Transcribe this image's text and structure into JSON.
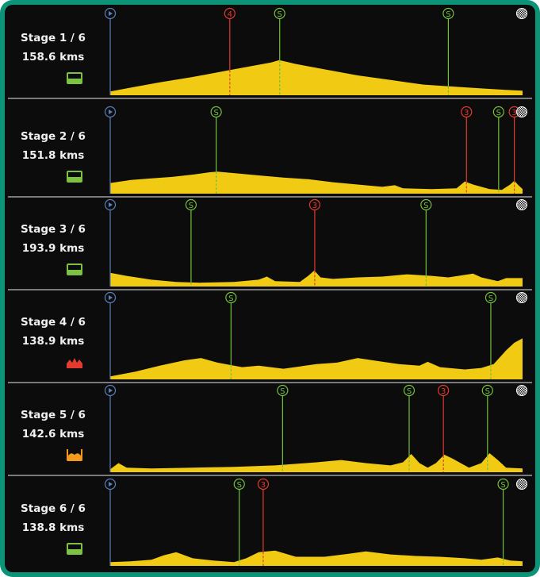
{
  "colors": {
    "frame": "#0d9478",
    "background": "#0c0c0c",
    "profile": "#f1cb13",
    "start_marker": "#5b7fb8",
    "sprint": "#72c13d",
    "climb": "#e33a2e",
    "separator": "#7a7a7a"
  },
  "stages": [
    {
      "name": "Stage 1 / 6",
      "distance": "158.6 kms",
      "difficulty": "flat",
      "difficulty_color": "#7dc242",
      "markers": [
        {
          "type": "start",
          "label": "",
          "pos": 0
        },
        {
          "type": "climb",
          "label": "4",
          "pos": 0.29
        },
        {
          "type": "sprint",
          "label": "S",
          "pos": 0.411
        },
        {
          "type": "sprint",
          "label": "S",
          "pos": 0.82
        },
        {
          "type": "finish",
          "label": "",
          "pos": 1
        }
      ],
      "profile": [
        [
          0,
          0.05
        ],
        [
          0.05,
          0.1
        ],
        [
          0.12,
          0.17
        ],
        [
          0.2,
          0.24
        ],
        [
          0.28,
          0.32
        ],
        [
          0.34,
          0.38
        ],
        [
          0.39,
          0.43
        ],
        [
          0.41,
          0.46
        ],
        [
          0.45,
          0.41
        ],
        [
          0.52,
          0.34
        ],
        [
          0.6,
          0.26
        ],
        [
          0.68,
          0.2
        ],
        [
          0.76,
          0.14
        ],
        [
          0.84,
          0.11
        ],
        [
          0.9,
          0.09
        ],
        [
          0.96,
          0.07
        ],
        [
          1,
          0.06
        ]
      ]
    },
    {
      "name": "Stage 2 / 6",
      "distance": "151.8 kms",
      "difficulty": "flat",
      "difficulty_color": "#7dc242",
      "markers": [
        {
          "type": "start",
          "label": "",
          "pos": 0
        },
        {
          "type": "sprint",
          "label": "S",
          "pos": 0.257
        },
        {
          "type": "climb",
          "label": "3",
          "pos": 0.864
        },
        {
          "type": "sprint",
          "label": "S",
          "pos": 0.942
        },
        {
          "type": "climb",
          "label": "3",
          "pos": 0.98
        },
        {
          "type": "finish",
          "label": "",
          "pos": 1
        }
      ],
      "profile": [
        [
          0,
          0.14
        ],
        [
          0.05,
          0.18
        ],
        [
          0.1,
          0.2
        ],
        [
          0.15,
          0.22
        ],
        [
          0.2,
          0.25
        ],
        [
          0.24,
          0.28
        ],
        [
          0.26,
          0.29
        ],
        [
          0.3,
          0.27
        ],
        [
          0.36,
          0.24
        ],
        [
          0.42,
          0.21
        ],
        [
          0.48,
          0.19
        ],
        [
          0.54,
          0.15
        ],
        [
          0.6,
          0.12
        ],
        [
          0.66,
          0.09
        ],
        [
          0.69,
          0.11
        ],
        [
          0.71,
          0.07
        ],
        [
          0.78,
          0.06
        ],
        [
          0.84,
          0.07
        ],
        [
          0.86,
          0.16
        ],
        [
          0.88,
          0.12
        ],
        [
          0.92,
          0.06
        ],
        [
          0.95,
          0.05
        ],
        [
          0.97,
          0.12
        ],
        [
          0.98,
          0.17
        ],
        [
          0.99,
          0.11
        ],
        [
          1,
          0.06
        ]
      ]
    },
    {
      "name": "Stage 3 / 6",
      "distance": "193.9 kms",
      "difficulty": "flat",
      "difficulty_color": "#7dc242",
      "markers": [
        {
          "type": "start",
          "label": "",
          "pos": 0
        },
        {
          "type": "sprint",
          "label": "S",
          "pos": 0.196
        },
        {
          "type": "climb",
          "label": "3",
          "pos": 0.496
        },
        {
          "type": "sprint",
          "label": "S",
          "pos": 0.766
        },
        {
          "type": "finish",
          "label": "",
          "pos": 1
        }
      ],
      "profile": [
        [
          0,
          0.18
        ],
        [
          0.04,
          0.14
        ],
        [
          0.1,
          0.09
        ],
        [
          0.16,
          0.06
        ],
        [
          0.22,
          0.05
        ],
        [
          0.3,
          0.06
        ],
        [
          0.36,
          0.09
        ],
        [
          0.38,
          0.13
        ],
        [
          0.4,
          0.07
        ],
        [
          0.46,
          0.06
        ],
        [
          0.48,
          0.14
        ],
        [
          0.495,
          0.21
        ],
        [
          0.51,
          0.12
        ],
        [
          0.54,
          0.1
        ],
        [
          0.6,
          0.12
        ],
        [
          0.66,
          0.13
        ],
        [
          0.72,
          0.16
        ],
        [
          0.78,
          0.14
        ],
        [
          0.82,
          0.12
        ],
        [
          0.88,
          0.17
        ],
        [
          0.9,
          0.12
        ],
        [
          0.94,
          0.07
        ],
        [
          0.96,
          0.11
        ],
        [
          1,
          0.11
        ]
      ]
    },
    {
      "name": "Stage 4 / 6",
      "distance": "138.9 kms",
      "difficulty": "mountain",
      "difficulty_color": "#e23b2f",
      "markers": [
        {
          "type": "start",
          "label": "",
          "pos": 0
        },
        {
          "type": "sprint",
          "label": "S",
          "pos": 0.293
        },
        {
          "type": "sprint",
          "label": "S",
          "pos": 0.923
        },
        {
          "type": "finish",
          "label": "",
          "pos": 1
        }
      ],
      "profile": [
        [
          0,
          0.04
        ],
        [
          0.06,
          0.1
        ],
        [
          0.12,
          0.18
        ],
        [
          0.18,
          0.25
        ],
        [
          0.22,
          0.28
        ],
        [
          0.26,
          0.22
        ],
        [
          0.32,
          0.16
        ],
        [
          0.36,
          0.18
        ],
        [
          0.42,
          0.14
        ],
        [
          0.46,
          0.17
        ],
        [
          0.5,
          0.2
        ],
        [
          0.55,
          0.22
        ],
        [
          0.6,
          0.28
        ],
        [
          0.65,
          0.24
        ],
        [
          0.7,
          0.2
        ],
        [
          0.75,
          0.18
        ],
        [
          0.77,
          0.23
        ],
        [
          0.8,
          0.16
        ],
        [
          0.86,
          0.13
        ],
        [
          0.9,
          0.15
        ],
        [
          0.93,
          0.2
        ],
        [
          0.96,
          0.38
        ],
        [
          0.98,
          0.48
        ],
        [
          1,
          0.54
        ]
      ]
    },
    {
      "name": "Stage 5 / 6",
      "distance": "142.6 kms",
      "difficulty": "hilly",
      "difficulty_color": "#f39a1e",
      "markers": [
        {
          "type": "start",
          "label": "",
          "pos": 0
        },
        {
          "type": "sprint",
          "label": "S",
          "pos": 0.418
        },
        {
          "type": "sprint",
          "label": "S",
          "pos": 0.725
        },
        {
          "type": "climb",
          "label": "3",
          "pos": 0.808
        },
        {
          "type": "sprint",
          "label": "S",
          "pos": 0.915
        },
        {
          "type": "finish",
          "label": "",
          "pos": 1
        }
      ],
      "profile": [
        [
          0,
          0.04
        ],
        [
          0.02,
          0.12
        ],
        [
          0.04,
          0.06
        ],
        [
          0.1,
          0.05
        ],
        [
          0.2,
          0.06
        ],
        [
          0.3,
          0.07
        ],
        [
          0.4,
          0.09
        ],
        [
          0.5,
          0.13
        ],
        [
          0.56,
          0.16
        ],
        [
          0.62,
          0.12
        ],
        [
          0.68,
          0.09
        ],
        [
          0.71,
          0.13
        ],
        [
          0.73,
          0.24
        ],
        [
          0.75,
          0.12
        ],
        [
          0.77,
          0.06
        ],
        [
          0.79,
          0.12
        ],
        [
          0.81,
          0.23
        ],
        [
          0.83,
          0.18
        ],
        [
          0.87,
          0.06
        ],
        [
          0.9,
          0.12
        ],
        [
          0.92,
          0.25
        ],
        [
          0.94,
          0.16
        ],
        [
          0.96,
          0.06
        ],
        [
          1,
          0.05
        ]
      ]
    },
    {
      "name": "Stage 6 / 6",
      "distance": "138.8 kms",
      "difficulty": "flat",
      "difficulty_color": "#7dc242",
      "markers": [
        {
          "type": "start",
          "label": "",
          "pos": 0
        },
        {
          "type": "sprint",
          "label": "S",
          "pos": 0.313
        },
        {
          "type": "climb",
          "label": "3",
          "pos": 0.371
        },
        {
          "type": "sprint",
          "label": "S",
          "pos": 0.953
        },
        {
          "type": "finish",
          "label": "",
          "pos": 1
        }
      ],
      "profile": [
        [
          0,
          0.05
        ],
        [
          0.05,
          0.06
        ],
        [
          0.1,
          0.08
        ],
        [
          0.13,
          0.14
        ],
        [
          0.16,
          0.18
        ],
        [
          0.2,
          0.1
        ],
        [
          0.25,
          0.07
        ],
        [
          0.3,
          0.05
        ],
        [
          0.33,
          0.1
        ],
        [
          0.36,
          0.18
        ],
        [
          0.4,
          0.2
        ],
        [
          0.45,
          0.12
        ],
        [
          0.52,
          0.12
        ],
        [
          0.58,
          0.16
        ],
        [
          0.62,
          0.19
        ],
        [
          0.68,
          0.15
        ],
        [
          0.74,
          0.13
        ],
        [
          0.8,
          0.12
        ],
        [
          0.86,
          0.1
        ],
        [
          0.9,
          0.08
        ],
        [
          0.94,
          0.11
        ],
        [
          0.97,
          0.07
        ],
        [
          1,
          0.06
        ]
      ]
    }
  ]
}
